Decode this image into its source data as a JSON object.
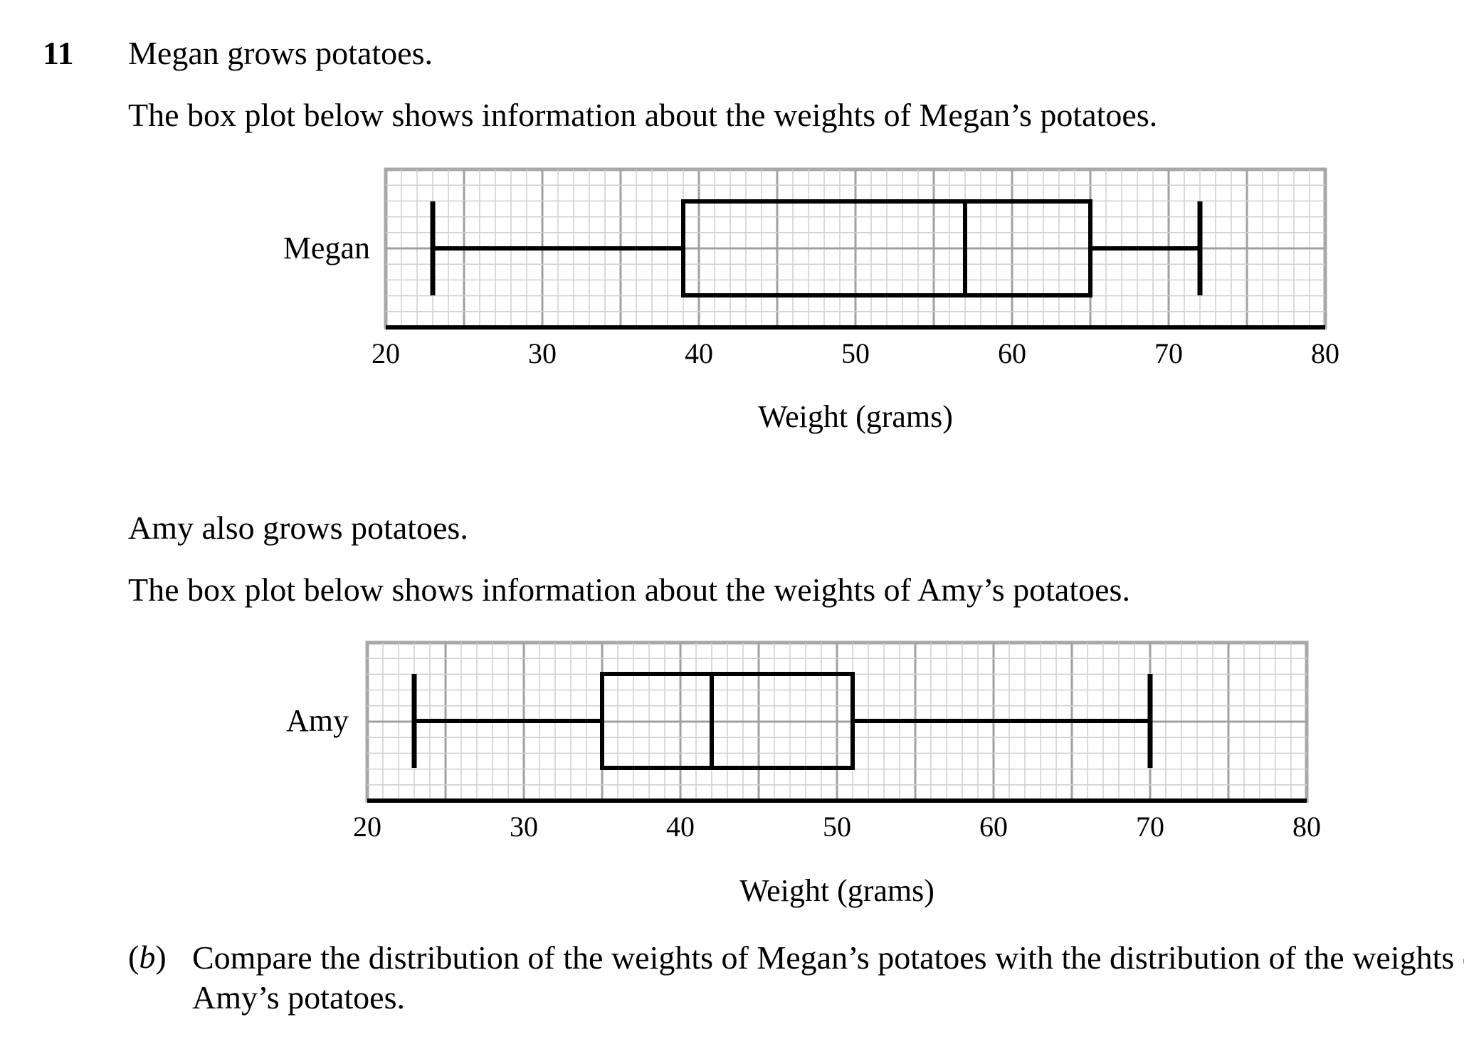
{
  "question": {
    "number": "11",
    "line1": "Megan grows potatoes.",
    "line2": "The box plot below shows information about the weights of Megan’s potatoes.",
    "line3": "Amy also grows potatoes.",
    "line4": "The box plot below shows information about the weights of Amy’s potatoes.",
    "part_label_open": "(",
    "part_label_letter": "b",
    "part_label_close": ")",
    "part_text": "Compare the distribution of the weights of Megan’s potatoes with the distribution of the weights of Amy’s potatoes."
  },
  "chart_data": [
    {
      "type": "boxplot",
      "series": [
        {
          "name": "Megan",
          "min": 23,
          "q1": 39,
          "median": 57,
          "q3": 65,
          "max": 72
        }
      ],
      "xlabel": "Weight (grams)",
      "xlim": [
        20,
        80
      ],
      "xticks": [
        "20",
        "30",
        "40",
        "50",
        "60",
        "70",
        "80"
      ],
      "grid": true
    },
    {
      "type": "boxplot",
      "series": [
        {
          "name": "Amy",
          "min": 23,
          "q1": 35,
          "median": 42,
          "q3": 51,
          "max": 70
        }
      ],
      "xlabel": "Weight (grams)",
      "xlim": [
        20,
        80
      ],
      "xticks": [
        "20",
        "30",
        "40",
        "50",
        "60",
        "70",
        "80"
      ],
      "grid": true
    }
  ]
}
